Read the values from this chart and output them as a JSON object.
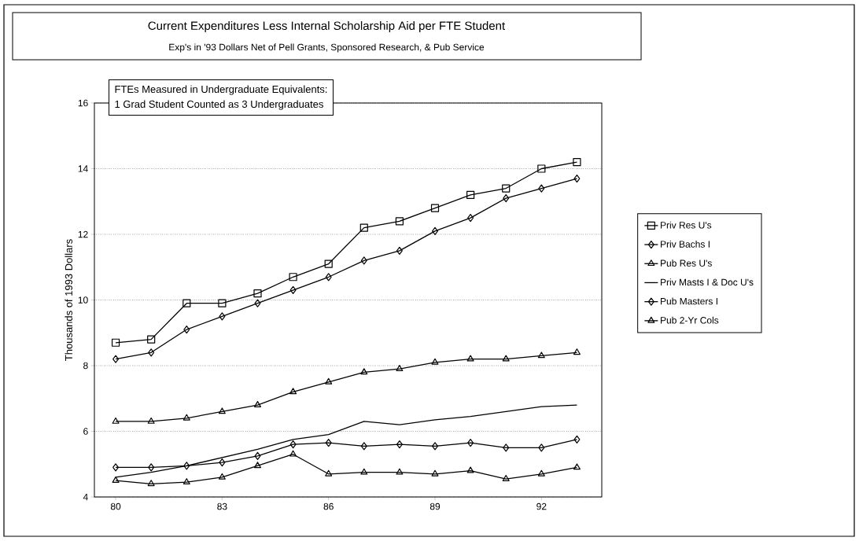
{
  "chart_data": {
    "type": "line",
    "title": "Current Expenditures Less Internal Scholarship Aid per FTE Student",
    "subtitle": "Exp's in '93 Dollars Net of Pell Grants, Sponsored Research, & Pub Service",
    "ylabel": "Thousands of 1993 Dollars",
    "annotations": [
      "FTEs Measured in Undergraduate Equivalents:",
      "1 Grad Student Counted as 3 Undergraduates"
    ],
    "x": [
      80,
      81,
      82,
      83,
      84,
      85,
      86,
      87,
      88,
      89,
      90,
      91,
      92,
      93
    ],
    "series": [
      {
        "name": "Priv Res U's",
        "color": "#000000",
        "marker": "square",
        "values": [
          8.7,
          8.8,
          9.9,
          9.9,
          10.2,
          10.7,
          11.1,
          12.2,
          12.4,
          12.8,
          13.2,
          13.4,
          14.0,
          14.2
        ]
      },
      {
        "name": "Priv Bachs I",
        "color": "#000000",
        "marker": "diamond",
        "values": [
          8.2,
          8.4,
          9.1,
          9.5,
          9.9,
          10.3,
          10.7,
          11.2,
          11.5,
          12.1,
          12.5,
          13.1,
          13.4,
          13.7
        ]
      },
      {
        "name": "Pub Res U's",
        "color": "#000000",
        "marker": "triangle",
        "values": [
          6.3,
          6.3,
          6.4,
          6.6,
          6.8,
          7.2,
          7.5,
          7.8,
          7.9,
          8.1,
          8.2,
          8.2,
          8.3,
          8.4
        ]
      },
      {
        "name": "Priv Masts I & Doc U's",
        "color": "#000000",
        "marker": "none",
        "values": [
          4.6,
          4.75,
          4.95,
          5.2,
          5.45,
          5.75,
          5.9,
          6.3,
          6.2,
          6.35,
          6.45,
          6.6,
          6.75,
          6.8
        ]
      },
      {
        "name": "Pub Masters I",
        "color": "#000000",
        "marker": "diamond",
        "values": [
          4.9,
          4.9,
          4.95,
          5.05,
          5.25,
          5.6,
          5.65,
          5.55,
          5.6,
          5.55,
          5.65,
          5.5,
          5.5,
          5.75
        ]
      },
      {
        "name": "Pub 2-Yr Cols",
        "color": "#000000",
        "marker": "triangle",
        "values": [
          4.5,
          4.4,
          4.45,
          4.6,
          4.95,
          5.3,
          4.7,
          4.75,
          4.75,
          4.7,
          4.8,
          4.55,
          4.7,
          4.9
        ]
      }
    ],
    "xlim": [
      79.4,
      93.7
    ],
    "xticks": [
      80,
      83,
      86,
      89,
      92
    ],
    "ylim": [
      4,
      16
    ],
    "yticks": [
      4,
      6,
      8,
      10,
      12,
      14,
      16
    ],
    "grid": "y",
    "legend": "right",
    "line_style": "solid"
  }
}
